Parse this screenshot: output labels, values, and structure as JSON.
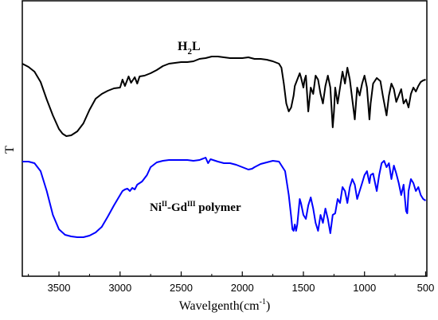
{
  "chart_data": {
    "type": "line",
    "title": "",
    "xlabel": {
      "main": "Wavelgenth(cm",
      "sup": "-1",
      "close": ")"
    },
    "ylabel": "T",
    "xlim": [
      3800,
      490
    ],
    "x_reversed": true,
    "x_ticks": [
      3500,
      3000,
      2500,
      2000,
      1500,
      1000,
      500
    ],
    "y_ticks_shown": false,
    "grid": false,
    "legend": "none",
    "y_units": "arbitrary (offset traces)",
    "series": [
      {
        "name": "H2L",
        "label": {
          "base": "H",
          "sub": "2",
          "rest": "L"
        },
        "color": "#000000",
        "points": [
          [
            3800,
            80
          ],
          [
            3750,
            84
          ],
          [
            3700,
            90
          ],
          [
            3650,
            103
          ],
          [
            3600,
            125
          ],
          [
            3550,
            145
          ],
          [
            3500,
            162
          ],
          [
            3470,
            168
          ],
          [
            3440,
            171
          ],
          [
            3400,
            170
          ],
          [
            3350,
            165
          ],
          [
            3300,
            155
          ],
          [
            3250,
            138
          ],
          [
            3200,
            124
          ],
          [
            3150,
            118
          ],
          [
            3100,
            114
          ],
          [
            3050,
            111
          ],
          [
            3000,
            110
          ],
          [
            2980,
            100
          ],
          [
            2960,
            108
          ],
          [
            2930,
            96
          ],
          [
            2910,
            104
          ],
          [
            2880,
            97
          ],
          [
            2860,
            105
          ],
          [
            2840,
            96
          ],
          [
            2800,
            95
          ],
          [
            2750,
            92
          ],
          [
            2700,
            88
          ],
          [
            2650,
            83
          ],
          [
            2600,
            80
          ],
          [
            2550,
            79
          ],
          [
            2500,
            78
          ],
          [
            2450,
            78
          ],
          [
            2400,
            77
          ],
          [
            2350,
            74
          ],
          [
            2300,
            73
          ],
          [
            2250,
            71
          ],
          [
            2200,
            71
          ],
          [
            2150,
            72
          ],
          [
            2100,
            73
          ],
          [
            2050,
            73
          ],
          [
            2000,
            73
          ],
          [
            1950,
            72
          ],
          [
            1900,
            74
          ],
          [
            1850,
            74
          ],
          [
            1800,
            75
          ],
          [
            1750,
            77
          ],
          [
            1700,
            80
          ],
          [
            1680,
            85
          ],
          [
            1660,
            105
          ],
          [
            1640,
            130
          ],
          [
            1620,
            140
          ],
          [
            1600,
            135
          ],
          [
            1580,
            120
          ],
          [
            1570,
            108
          ],
          [
            1550,
            100
          ],
          [
            1530,
            92
          ],
          [
            1520,
            97
          ],
          [
            1500,
            110
          ],
          [
            1490,
            100
          ],
          [
            1480,
            95
          ],
          [
            1460,
            140
          ],
          [
            1440,
            110
          ],
          [
            1420,
            118
          ],
          [
            1400,
            95
          ],
          [
            1380,
            100
          ],
          [
            1360,
            118
          ],
          [
            1340,
            130
          ],
          [
            1320,
            108
          ],
          [
            1300,
            95
          ],
          [
            1280,
            110
          ],
          [
            1260,
            160
          ],
          [
            1250,
            140
          ],
          [
            1240,
            110
          ],
          [
            1220,
            130
          ],
          [
            1200,
            110
          ],
          [
            1180,
            90
          ],
          [
            1160,
            105
          ],
          [
            1140,
            85
          ],
          [
            1120,
            100
          ],
          [
            1100,
            125
          ],
          [
            1080,
            150
          ],
          [
            1060,
            110
          ],
          [
            1040,
            120
          ],
          [
            1020,
            105
          ],
          [
            1000,
            95
          ],
          [
            980,
            110
          ],
          [
            960,
            150
          ],
          [
            950,
            130
          ],
          [
            930,
            105
          ],
          [
            900,
            98
          ],
          [
            870,
            102
          ],
          [
            850,
            120
          ],
          [
            820,
            145
          ],
          [
            800,
            120
          ],
          [
            780,
            105
          ],
          [
            760,
            112
          ],
          [
            740,
            128
          ],
          [
            720,
            120
          ],
          [
            700,
            112
          ],
          [
            680,
            130
          ],
          [
            660,
            125
          ],
          [
            640,
            135
          ],
          [
            620,
            118
          ],
          [
            600,
            110
          ],
          [
            580,
            115
          ],
          [
            560,
            108
          ],
          [
            540,
            103
          ],
          [
            520,
            101
          ],
          [
            500,
            100
          ]
        ]
      },
      {
        "name": "NiII-GdIII polymer",
        "label": {
          "parts": [
            {
              "t": "Ni",
              "sup": false
            },
            {
              "t": "II",
              "sup": true
            },
            {
              "t": "-Gd",
              "sup": false
            },
            {
              "t": "III",
              "sup": true
            },
            {
              "t": " polymer",
              "sup": false
            }
          ]
        },
        "color": "#0000ff",
        "points": [
          [
            3800,
            203
          ],
          [
            3750,
            203
          ],
          [
            3700,
            205
          ],
          [
            3650,
            215
          ],
          [
            3600,
            240
          ],
          [
            3550,
            270
          ],
          [
            3500,
            288
          ],
          [
            3450,
            295
          ],
          [
            3400,
            297
          ],
          [
            3350,
            298
          ],
          [
            3300,
            298
          ],
          [
            3250,
            296
          ],
          [
            3200,
            292
          ],
          [
            3150,
            285
          ],
          [
            3100,
            272
          ],
          [
            3050,
            258
          ],
          [
            3000,
            245
          ],
          [
            2980,
            240
          ],
          [
            2960,
            238
          ],
          [
            2940,
            237
          ],
          [
            2920,
            240
          ],
          [
            2900,
            236
          ],
          [
            2880,
            238
          ],
          [
            2860,
            232
          ],
          [
            2820,
            228
          ],
          [
            2780,
            220
          ],
          [
            2750,
            210
          ],
          [
            2700,
            204
          ],
          [
            2650,
            202
          ],
          [
            2600,
            201
          ],
          [
            2550,
            201
          ],
          [
            2500,
            201
          ],
          [
            2450,
            201
          ],
          [
            2400,
            202
          ],
          [
            2350,
            201
          ],
          [
            2300,
            198
          ],
          [
            2280,
            205
          ],
          [
            2260,
            200
          ],
          [
            2200,
            203
          ],
          [
            2150,
            205
          ],
          [
            2100,
            205
          ],
          [
            2050,
            207
          ],
          [
            2000,
            210
          ],
          [
            1950,
            213
          ],
          [
            1920,
            212
          ],
          [
            1900,
            210
          ],
          [
            1850,
            206
          ],
          [
            1800,
            204
          ],
          [
            1750,
            202
          ],
          [
            1700,
            203
          ],
          [
            1650,
            215
          ],
          [
            1620,
            245
          ],
          [
            1600,
            272
          ],
          [
            1590,
            288
          ],
          [
            1580,
            290
          ],
          [
            1570,
            282
          ],
          [
            1560,
            290
          ],
          [
            1550,
            282
          ],
          [
            1530,
            250
          ],
          [
            1520,
            255
          ],
          [
            1500,
            270
          ],
          [
            1480,
            275
          ],
          [
            1460,
            258
          ],
          [
            1440,
            248
          ],
          [
            1420,
            262
          ],
          [
            1400,
            280
          ],
          [
            1380,
            290
          ],
          [
            1360,
            270
          ],
          [
            1340,
            280
          ],
          [
            1320,
            262
          ],
          [
            1300,
            275
          ],
          [
            1280,
            293
          ],
          [
            1260,
            270
          ],
          [
            1240,
            268
          ],
          [
            1220,
            250
          ],
          [
            1200,
            255
          ],
          [
            1180,
            235
          ],
          [
            1160,
            240
          ],
          [
            1140,
            255
          ],
          [
            1120,
            235
          ],
          [
            1100,
            225
          ],
          [
            1080,
            232
          ],
          [
            1060,
            250
          ],
          [
            1040,
            240
          ],
          [
            1020,
            230
          ],
          [
            1000,
            220
          ],
          [
            980,
            215
          ],
          [
            960,
            230
          ],
          [
            950,
            220
          ],
          [
            930,
            218
          ],
          [
            900,
            240
          ],
          [
            880,
            220
          ],
          [
            860,
            205
          ],
          [
            840,
            202
          ],
          [
            820,
            210
          ],
          [
            800,
            205
          ],
          [
            780,
            225
          ],
          [
            760,
            208
          ],
          [
            740,
            218
          ],
          [
            720,
            230
          ],
          [
            700,
            245
          ],
          [
            680,
            232
          ],
          [
            660,
            265
          ],
          [
            650,
            268
          ],
          [
            640,
            240
          ],
          [
            620,
            225
          ],
          [
            600,
            230
          ],
          [
            580,
            240
          ],
          [
            560,
            235
          ],
          [
            540,
            245
          ],
          [
            520,
            250
          ],
          [
            500,
            252
          ]
        ]
      }
    ]
  }
}
